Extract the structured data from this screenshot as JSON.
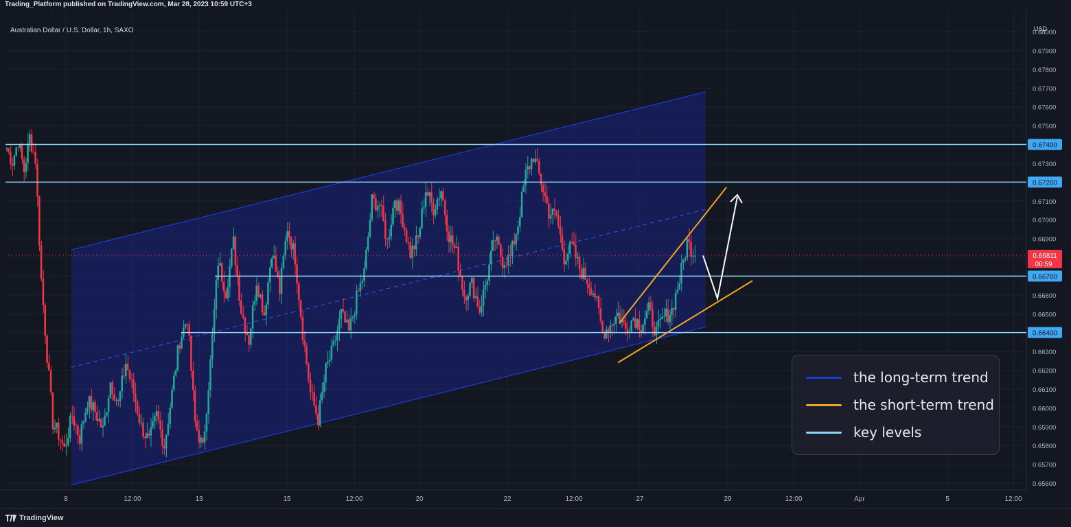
{
  "header": {
    "published_text": "Trading_Platform published on TradingView.com, Mar 28, 2023 10:59 UTC+3"
  },
  "chart_header": {
    "symbol": "Australian Dollar / U.S. Dollar, 1h, SAXO",
    "currency": "USD"
  },
  "footer": {
    "brand": "TradingView"
  },
  "legend": [
    {
      "label": "the long-term trend",
      "color": "#1e3ad8"
    },
    {
      "label": "the short-term trend",
      "color": "#f5a623"
    },
    {
      "label": "key levels",
      "color": "#8fd8f8"
    }
  ],
  "chart_data": {
    "type": "candlestick",
    "title": "Australian Dollar / U.S. Dollar, 1h, SAXO",
    "y_unit": "USD",
    "ylim": [
      0.6555,
      0.6805
    ],
    "y_ticks": [
      "0.68000",
      "0.67900",
      "0.67800",
      "0.67700",
      "0.67600",
      "0.67500",
      "0.67400",
      "0.67300",
      "0.67200",
      "0.67100",
      "0.67000",
      "0.66900",
      "0.66800",
      "0.66700",
      "0.66600",
      "0.66500",
      "0.66400",
      "0.66300",
      "0.66200",
      "0.66100",
      "0.66000",
      "0.65900",
      "0.65800",
      "0.65700",
      "0.65600"
    ],
    "x_ticks": [
      "8",
      "12:00",
      "13",
      "15",
      "12:00",
      "20",
      "22",
      "12:00",
      "27",
      "29",
      "12:00",
      "Apr",
      "5",
      "12:00"
    ],
    "key_levels": [
      {
        "label": "0.67400",
        "value": 0.674
      },
      {
        "label": "0.67200",
        "value": 0.672
      },
      {
        "label": "0.66700",
        "value": 0.667
      },
      {
        "label": "0.66400",
        "value": 0.664
      }
    ],
    "current_price": {
      "value": "0.66811",
      "countdown": "00:59",
      "color": "#f23645"
    },
    "colors": {
      "up": "#26a69a",
      "down": "#f23645",
      "channel": "#1e3ad8",
      "channel_fill": "#1a237e",
      "short_trend": "#f5a623",
      "key_level": "#8fd8f8",
      "projection": "#ffffff"
    },
    "price_path": [
      [
        0,
        0.6738
      ],
      [
        3,
        0.6731
      ],
      [
        6,
        0.6742
      ],
      [
        9,
        0.6726
      ],
      [
        12,
        0.6744
      ],
      [
        15,
        0.6732
      ],
      [
        18,
        0.6668
      ],
      [
        21,
        0.6628
      ],
      [
        24,
        0.6592
      ],
      [
        27,
        0.6586
      ],
      [
        30,
        0.6578
      ],
      [
        34,
        0.6596
      ],
      [
        38,
        0.6584
      ],
      [
        42,
        0.6604
      ],
      [
        46,
        0.6598
      ],
      [
        50,
        0.6588
      ],
      [
        54,
        0.6614
      ],
      [
        58,
        0.6602
      ],
      [
        62,
        0.6624
      ],
      [
        66,
        0.6608
      ],
      [
        70,
        0.659
      ],
      [
        74,
        0.6582
      ],
      [
        78,
        0.6596
      ],
      [
        82,
        0.658
      ],
      [
        86,
        0.6608
      ],
      [
        90,
        0.6636
      ],
      [
        94,
        0.6648
      ],
      [
        98,
        0.6592
      ],
      [
        102,
        0.6578
      ],
      [
        106,
        0.6624
      ],
      [
        110,
        0.6678
      ],
      [
        114,
        0.6662
      ],
      [
        118,
        0.6688
      ],
      [
        122,
        0.6652
      ],
      [
        126,
        0.6636
      ],
      [
        130,
        0.6668
      ],
      [
        134,
        0.665
      ],
      [
        138,
        0.6684
      ],
      [
        142,
        0.6662
      ],
      [
        146,
        0.6696
      ],
      [
        150,
        0.668
      ],
      [
        154,
        0.664
      ],
      [
        158,
        0.6608
      ],
      [
        162,
        0.6594
      ],
      [
        166,
        0.662
      ],
      [
        170,
        0.6632
      ],
      [
        174,
        0.665
      ],
      [
        178,
        0.664
      ],
      [
        182,
        0.6658
      ],
      [
        186,
        0.6672
      ],
      [
        190,
        0.671
      ],
      [
        194,
        0.6708
      ],
      [
        198,
        0.6688
      ],
      [
        202,
        0.6712
      ],
      [
        206,
        0.67
      ],
      [
        210,
        0.6682
      ],
      [
        214,
        0.669
      ],
      [
        218,
        0.6716
      ],
      [
        222,
        0.6706
      ],
      [
        226,
        0.6716
      ],
      [
        230,
        0.6692
      ],
      [
        234,
        0.6682
      ],
      [
        238,
        0.666
      ],
      [
        242,
        0.6666
      ],
      [
        246,
        0.6652
      ],
      [
        250,
        0.667
      ],
      [
        254,
        0.669
      ],
      [
        258,
        0.6678
      ],
      [
        262,
        0.668
      ],
      [
        266,
        0.6698
      ],
      [
        270,
        0.6724
      ],
      [
        274,
        0.6734
      ],
      [
        278,
        0.672
      ],
      [
        282,
        0.6704
      ],
      [
        286,
        0.6702
      ],
      [
        290,
        0.668
      ],
      [
        294,
        0.6686
      ],
      [
        298,
        0.6674
      ],
      [
        302,
        0.6668
      ],
      [
        306,
        0.666
      ],
      [
        310,
        0.664
      ],
      [
        314,
        0.6644
      ],
      [
        318,
        0.665
      ],
      [
        322,
        0.6642
      ],
      [
        326,
        0.6648
      ],
      [
        330,
        0.6644
      ],
      [
        334,
        0.6652
      ],
      [
        338,
        0.664
      ],
      [
        342,
        0.6648
      ],
      [
        346,
        0.6652
      ],
      [
        350,
        0.6668
      ],
      [
        354,
        0.6688
      ],
      [
        358,
        0.6681
      ]
    ],
    "long_term_channel": {
      "upper": [
        [
          0.6684,
          0
        ],
        [
          0.6768,
          1
        ]
      ],
      "lower": [
        [
          0.6559,
          0
        ],
        [
          0.6643,
          1
        ]
      ],
      "mid_dashed": true
    },
    "short_term_trend": {
      "upper": [
        [
          0.6645,
          0
        ],
        [
          0.6715,
          1
        ]
      ],
      "lower": [
        [
          0.6624,
          0
        ],
        [
          0.6669,
          1
        ]
      ]
    },
    "projection": [
      0.6681,
      0.6661,
      0.6711
    ]
  }
}
